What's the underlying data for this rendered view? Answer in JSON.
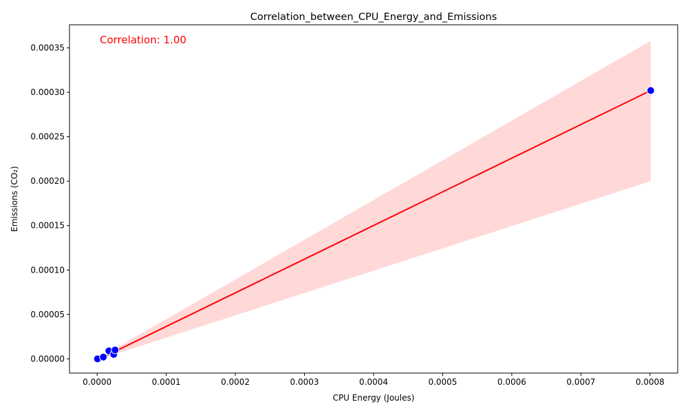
{
  "colors": {
    "points_fill": "#0000ff",
    "points_edge": "#ffffff",
    "regression_line": "#ff0000",
    "confidence_band": "#ffd8d8",
    "annotation": "#ff0000"
  },
  "chart_data": {
    "type": "scatter",
    "title": "Correlation_between_CPU_Energy_and_Emissions",
    "xlabel": "CPU Energy (Joules)",
    "ylabel": "Emissions (CO₂)",
    "xlim": [
      -4e-05,
      0.00084
    ],
    "ylim": [
      -1.6e-05,
      0.000376
    ],
    "xticks": [
      0.0,
      0.0001,
      0.0002,
      0.0003,
      0.0004,
      0.0005,
      0.0006,
      0.0007,
      0.0008
    ],
    "xtick_labels": [
      "0.0000",
      "0.0001",
      "0.0002",
      "0.0003",
      "0.0004",
      "0.0005",
      "0.0006",
      "0.0007",
      "0.0008"
    ],
    "yticks": [
      0.0,
      5e-05,
      0.0001,
      0.00015,
      0.0002,
      0.00025,
      0.0003,
      0.00035
    ],
    "ytick_labels": [
      "0.00000",
      "0.00005",
      "0.00010",
      "0.00015",
      "0.00020",
      "0.00025",
      "0.00030",
      "0.00035"
    ],
    "grid": false,
    "points": [
      {
        "x": 5e-07,
        "y": 0.0
      },
      {
        "x": 9e-06,
        "y": 2e-06
      },
      {
        "x": 1.7e-05,
        "y": 9e-06
      },
      {
        "x": 2.4e-05,
        "y": 5e-06
      },
      {
        "x": 2.6e-05,
        "y": 1e-05
      },
      {
        "x": 0.000801,
        "y": 0.000302
      }
    ],
    "regression": {
      "x_start": 9e-06,
      "x_end": 0.000801,
      "y_start": 2e-06,
      "y_end": 0.000302,
      "band_upper_end": 0.000358,
      "band_lower_end": 0.0002,
      "band_upper_start": 4e-06,
      "band_lower_start": 1e-06
    },
    "annotation": "Correlation: 1.00"
  }
}
